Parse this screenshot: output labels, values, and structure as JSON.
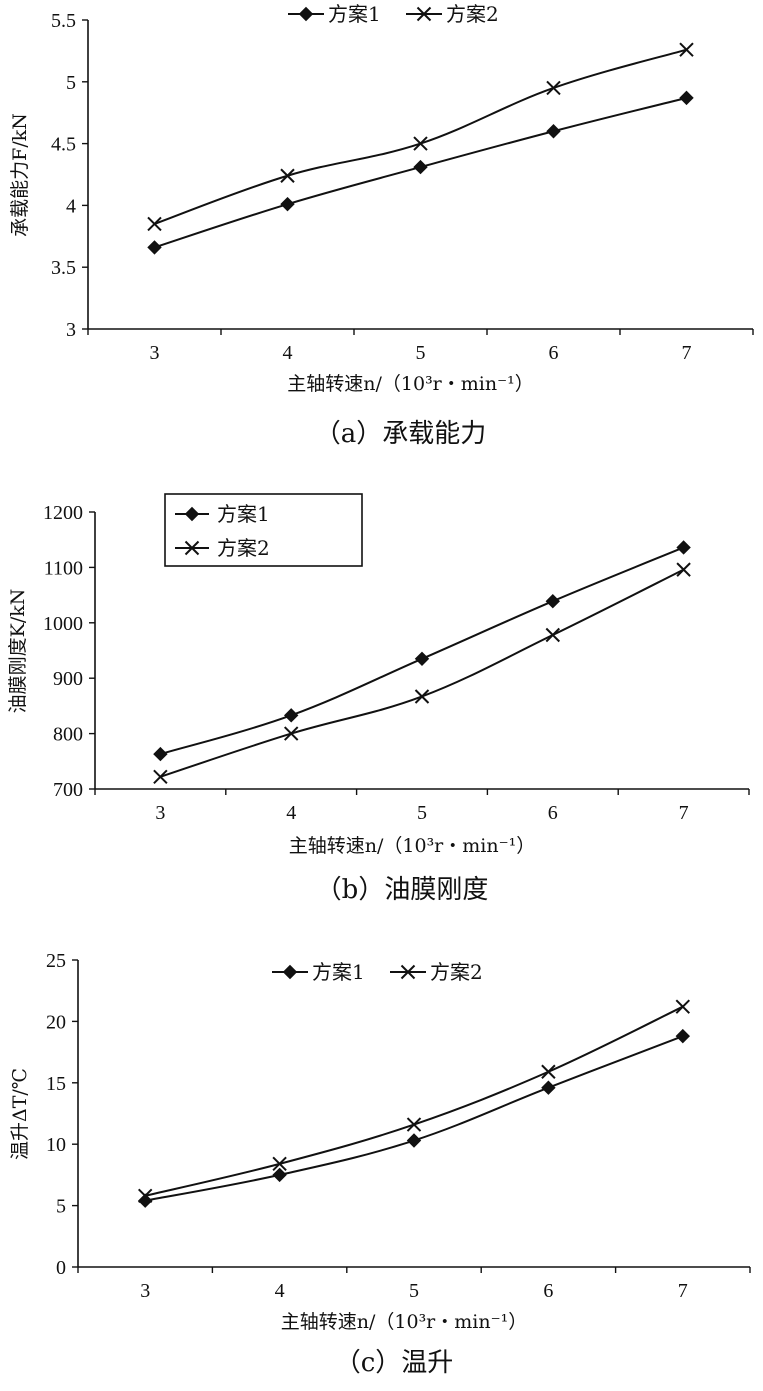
{
  "colors": {
    "ink": "#111111",
    "background": "#ffffff"
  },
  "chart_data": [
    {
      "type": "line",
      "caption": "（a）承载能力",
      "xlabel": "主轴转速n/（10³r・min⁻¹）",
      "ylabel": "承载能力F/kN",
      "x": [
        3,
        4,
        5,
        6,
        7
      ],
      "xticks": [
        "3",
        "4",
        "5",
        "6",
        "7"
      ],
      "ylim": [
        3,
        5.5
      ],
      "yticks": [
        "3",
        "3.5",
        "4",
        "4.5",
        "5",
        "5.5"
      ],
      "ytick_values": [
        3,
        3.5,
        4,
        4.5,
        5,
        5.5
      ],
      "legend_position": "top-center",
      "legend_boxed": false,
      "grid": false,
      "series": [
        {
          "name": "方案1",
          "marker": "diamond-icon",
          "values": [
            3.66,
            4.01,
            4.31,
            4.6,
            4.87
          ]
        },
        {
          "name": "方案2",
          "marker": "x-icon",
          "values": [
            3.85,
            4.24,
            4.5,
            4.95,
            5.26
          ]
        }
      ]
    },
    {
      "type": "line",
      "caption": "（b）油膜刚度",
      "xlabel": "主轴转速n/（10³r・min⁻¹）",
      "ylabel": "油膜刚度K/kN",
      "x": [
        3,
        4,
        5,
        6,
        7
      ],
      "xticks": [
        "3",
        "4",
        "5",
        "6",
        "7"
      ],
      "ylim": [
        700,
        1200
      ],
      "yticks": [
        "700",
        "800",
        "900",
        "1000",
        "1100",
        "1200"
      ],
      "ytick_values": [
        700,
        800,
        900,
        1000,
        1100,
        1200
      ],
      "legend_position": "top-left",
      "legend_boxed": true,
      "grid": false,
      "series": [
        {
          "name": "方案1",
          "marker": "diamond-icon",
          "values": [
            763,
            833,
            935,
            1039,
            1136
          ]
        },
        {
          "name": "方案2",
          "marker": "x-icon",
          "values": [
            722,
            800,
            867,
            978,
            1096
          ]
        }
      ]
    },
    {
      "type": "line",
      "caption": "（c）温升",
      "xlabel": "主轴转速n/（10³r・min⁻¹）",
      "ylabel": "温升ΔT/℃",
      "x": [
        3,
        4,
        5,
        6,
        7
      ],
      "xticks": [
        "3",
        "4",
        "5",
        "6",
        "7"
      ],
      "ylim": [
        0,
        25
      ],
      "yticks": [
        "0",
        "5",
        "10",
        "15",
        "20",
        "25"
      ],
      "ytick_values": [
        0,
        5,
        10,
        15,
        20,
        25
      ],
      "legend_position": "top-center",
      "legend_boxed": false,
      "grid": false,
      "series": [
        {
          "name": "方案1",
          "marker": "diamond-icon",
          "values": [
            5.4,
            7.5,
            10.3,
            14.6,
            18.8
          ]
        },
        {
          "name": "方案2",
          "marker": "x-icon",
          "values": [
            5.8,
            8.4,
            11.6,
            15.9,
            21.2
          ]
        }
      ]
    }
  ]
}
